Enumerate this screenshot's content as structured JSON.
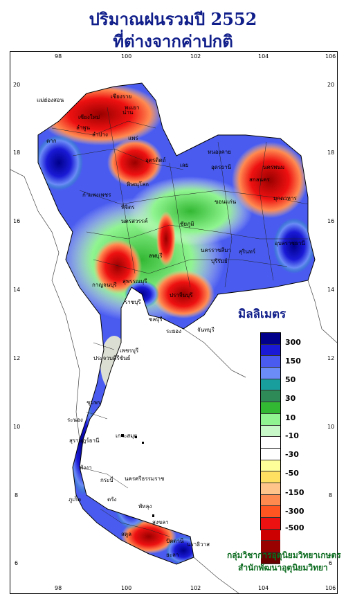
{
  "title_line1": "ปริมาณฝนรวมปี  2552",
  "title_line2": "ที่ต่างจากค่าปกติ",
  "lon_ticks": [
    "98",
    "100",
    "102",
    "104",
    "106"
  ],
  "lat_ticks": [
    "20",
    "18",
    "16",
    "14",
    "12",
    "10",
    "8",
    "6"
  ],
  "legend": {
    "title": "มิลลิเมตร",
    "labels": [
      "300",
      "150",
      "50",
      "30",
      "10",
      "-10",
      "-30",
      "-50",
      "-150",
      "-300",
      "-500"
    ],
    "colors": [
      "#00008b",
      "#1a1ad6",
      "#4a5cf0",
      "#6b8bf7",
      "#199e9e",
      "#2e8b57",
      "#33b833",
      "#90f590",
      "#c8f7c8",
      "#ffffff",
      "#ffffff",
      "#ffff99",
      "#ffe060",
      "#ffc48a",
      "#ff8a50",
      "#ff5520",
      "#ee1111",
      "#cc0000",
      "#990000",
      "#6b0000"
    ]
  },
  "credit_line1": "กลุ่มวิชาการอุตุนิยมวิทยาเกษตร",
  "credit_line2": "สำนักพัฒนาอุตุนิยมวิทยา",
  "places": [
    {
      "name": "เชียงราย"
    },
    {
      "name": "แม่ฮ่องสอน"
    },
    {
      "name": "พะเยา"
    },
    {
      "name": "เชียงใหม่"
    },
    {
      "name": "ลำพูน"
    },
    {
      "name": "ลำปาง"
    },
    {
      "name": "แพร่"
    },
    {
      "name": "น่าน"
    },
    {
      "name": "ตาก"
    },
    {
      "name": "อุตรดิตถ์"
    },
    {
      "name": "พิษณุโลก"
    },
    {
      "name": "กำแพงเพชร"
    },
    {
      "name": "พิจิตร"
    },
    {
      "name": "นครสวรรค์"
    },
    {
      "name": "เลย"
    },
    {
      "name": "หนองคาย"
    },
    {
      "name": "อุดรธานี"
    },
    {
      "name": "นครพนม"
    },
    {
      "name": "สกลนคร"
    },
    {
      "name": "มุกดาหาร"
    },
    {
      "name": "ขอนแก่น"
    },
    {
      "name": "ชัยภูมิ"
    },
    {
      "name": "นครราชสีมา"
    },
    {
      "name": "อุบลราชธานี"
    },
    {
      "name": "สุรินทร์"
    },
    {
      "name": "บุรีรัมย์"
    },
    {
      "name": "ลพบุรี"
    },
    {
      "name": "สุพรรณบุรี"
    },
    {
      "name": "กาญจนบุรี"
    },
    {
      "name": "ราชบุรี"
    },
    {
      "name": "ปราจีนบุรี"
    },
    {
      "name": "ชลบุรี"
    },
    {
      "name": "ระยอง"
    },
    {
      "name": "จันทบุรี"
    },
    {
      "name": "เพชรบุรี"
    },
    {
      "name": "ประจวบคีรีขันธ์"
    },
    {
      "name": "ชุมพร"
    },
    {
      "name": "ระนอง"
    },
    {
      "name": "สุราษฎร์ธานี"
    },
    {
      "name": "เกาะสมุย"
    },
    {
      "name": "พังงา"
    },
    {
      "name": "ภูเก็ต"
    },
    {
      "name": "กระบี่"
    },
    {
      "name": "นครศรีธรรมราช"
    },
    {
      "name": "ตรัง"
    },
    {
      "name": "พัทลุง"
    },
    {
      "name": "สงขลา"
    },
    {
      "name": "สตูล"
    },
    {
      "name": "ปัตตานี"
    },
    {
      "name": "ยะลา"
    },
    {
      "name": "นราธิวาส"
    }
  ]
}
